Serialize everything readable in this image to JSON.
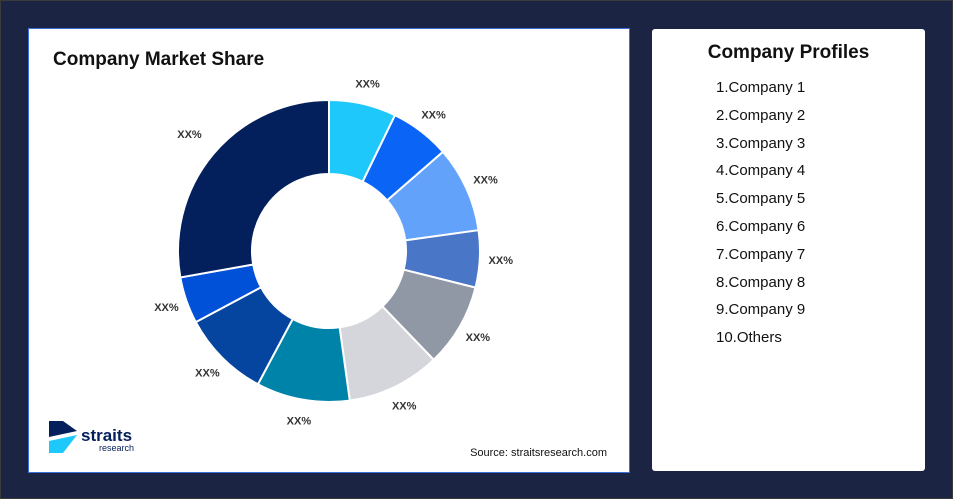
{
  "chart_data": {
    "type": "pie",
    "title": "Company Market Share",
    "donut": true,
    "categories": [
      "Company 1",
      "Company 2",
      "Company 3",
      "Company 4",
      "Company 5",
      "Company 6",
      "Company 7",
      "Company 8",
      "Company 9",
      "Others"
    ],
    "values": [
      7.2,
      6.4,
      9.2,
      6.1,
      8.9,
      10,
      10,
      9.4,
      5,
      27.8
    ],
    "labels": [
      "XX%",
      "XX%",
      "XX%",
      "XX%",
      "XX%",
      "XX%",
      "XX%",
      "XX%",
      "XX%",
      "XX%"
    ],
    "colors": [
      "#1fc8fb",
      "#0a64f6",
      "#62a2fb",
      "#4a76c8",
      "#9098a6",
      "#d4d6dc",
      "#0083a8",
      "#0545a0",
      "#0050d8",
      "#04205c"
    ]
  },
  "source": "Source: straitsresearch.com",
  "logo": {
    "name": "straits",
    "sub": "research"
  },
  "profiles": {
    "title": "Company Profiles",
    "items": [
      "1.Company 1",
      "2.Company 2",
      "3.Company 3",
      "4.Company 4",
      "5.Company 5",
      "6.Company 6",
      "7.Company 7",
      "8.Company 8",
      "9.Company 9",
      "10.Others"
    ]
  }
}
